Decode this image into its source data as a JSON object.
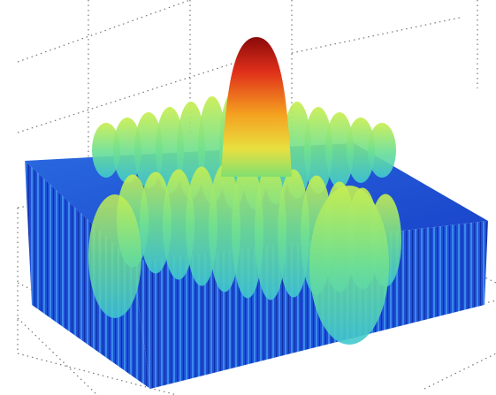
{
  "chart_data": {
    "type": "surface",
    "grid": true
  }
}
